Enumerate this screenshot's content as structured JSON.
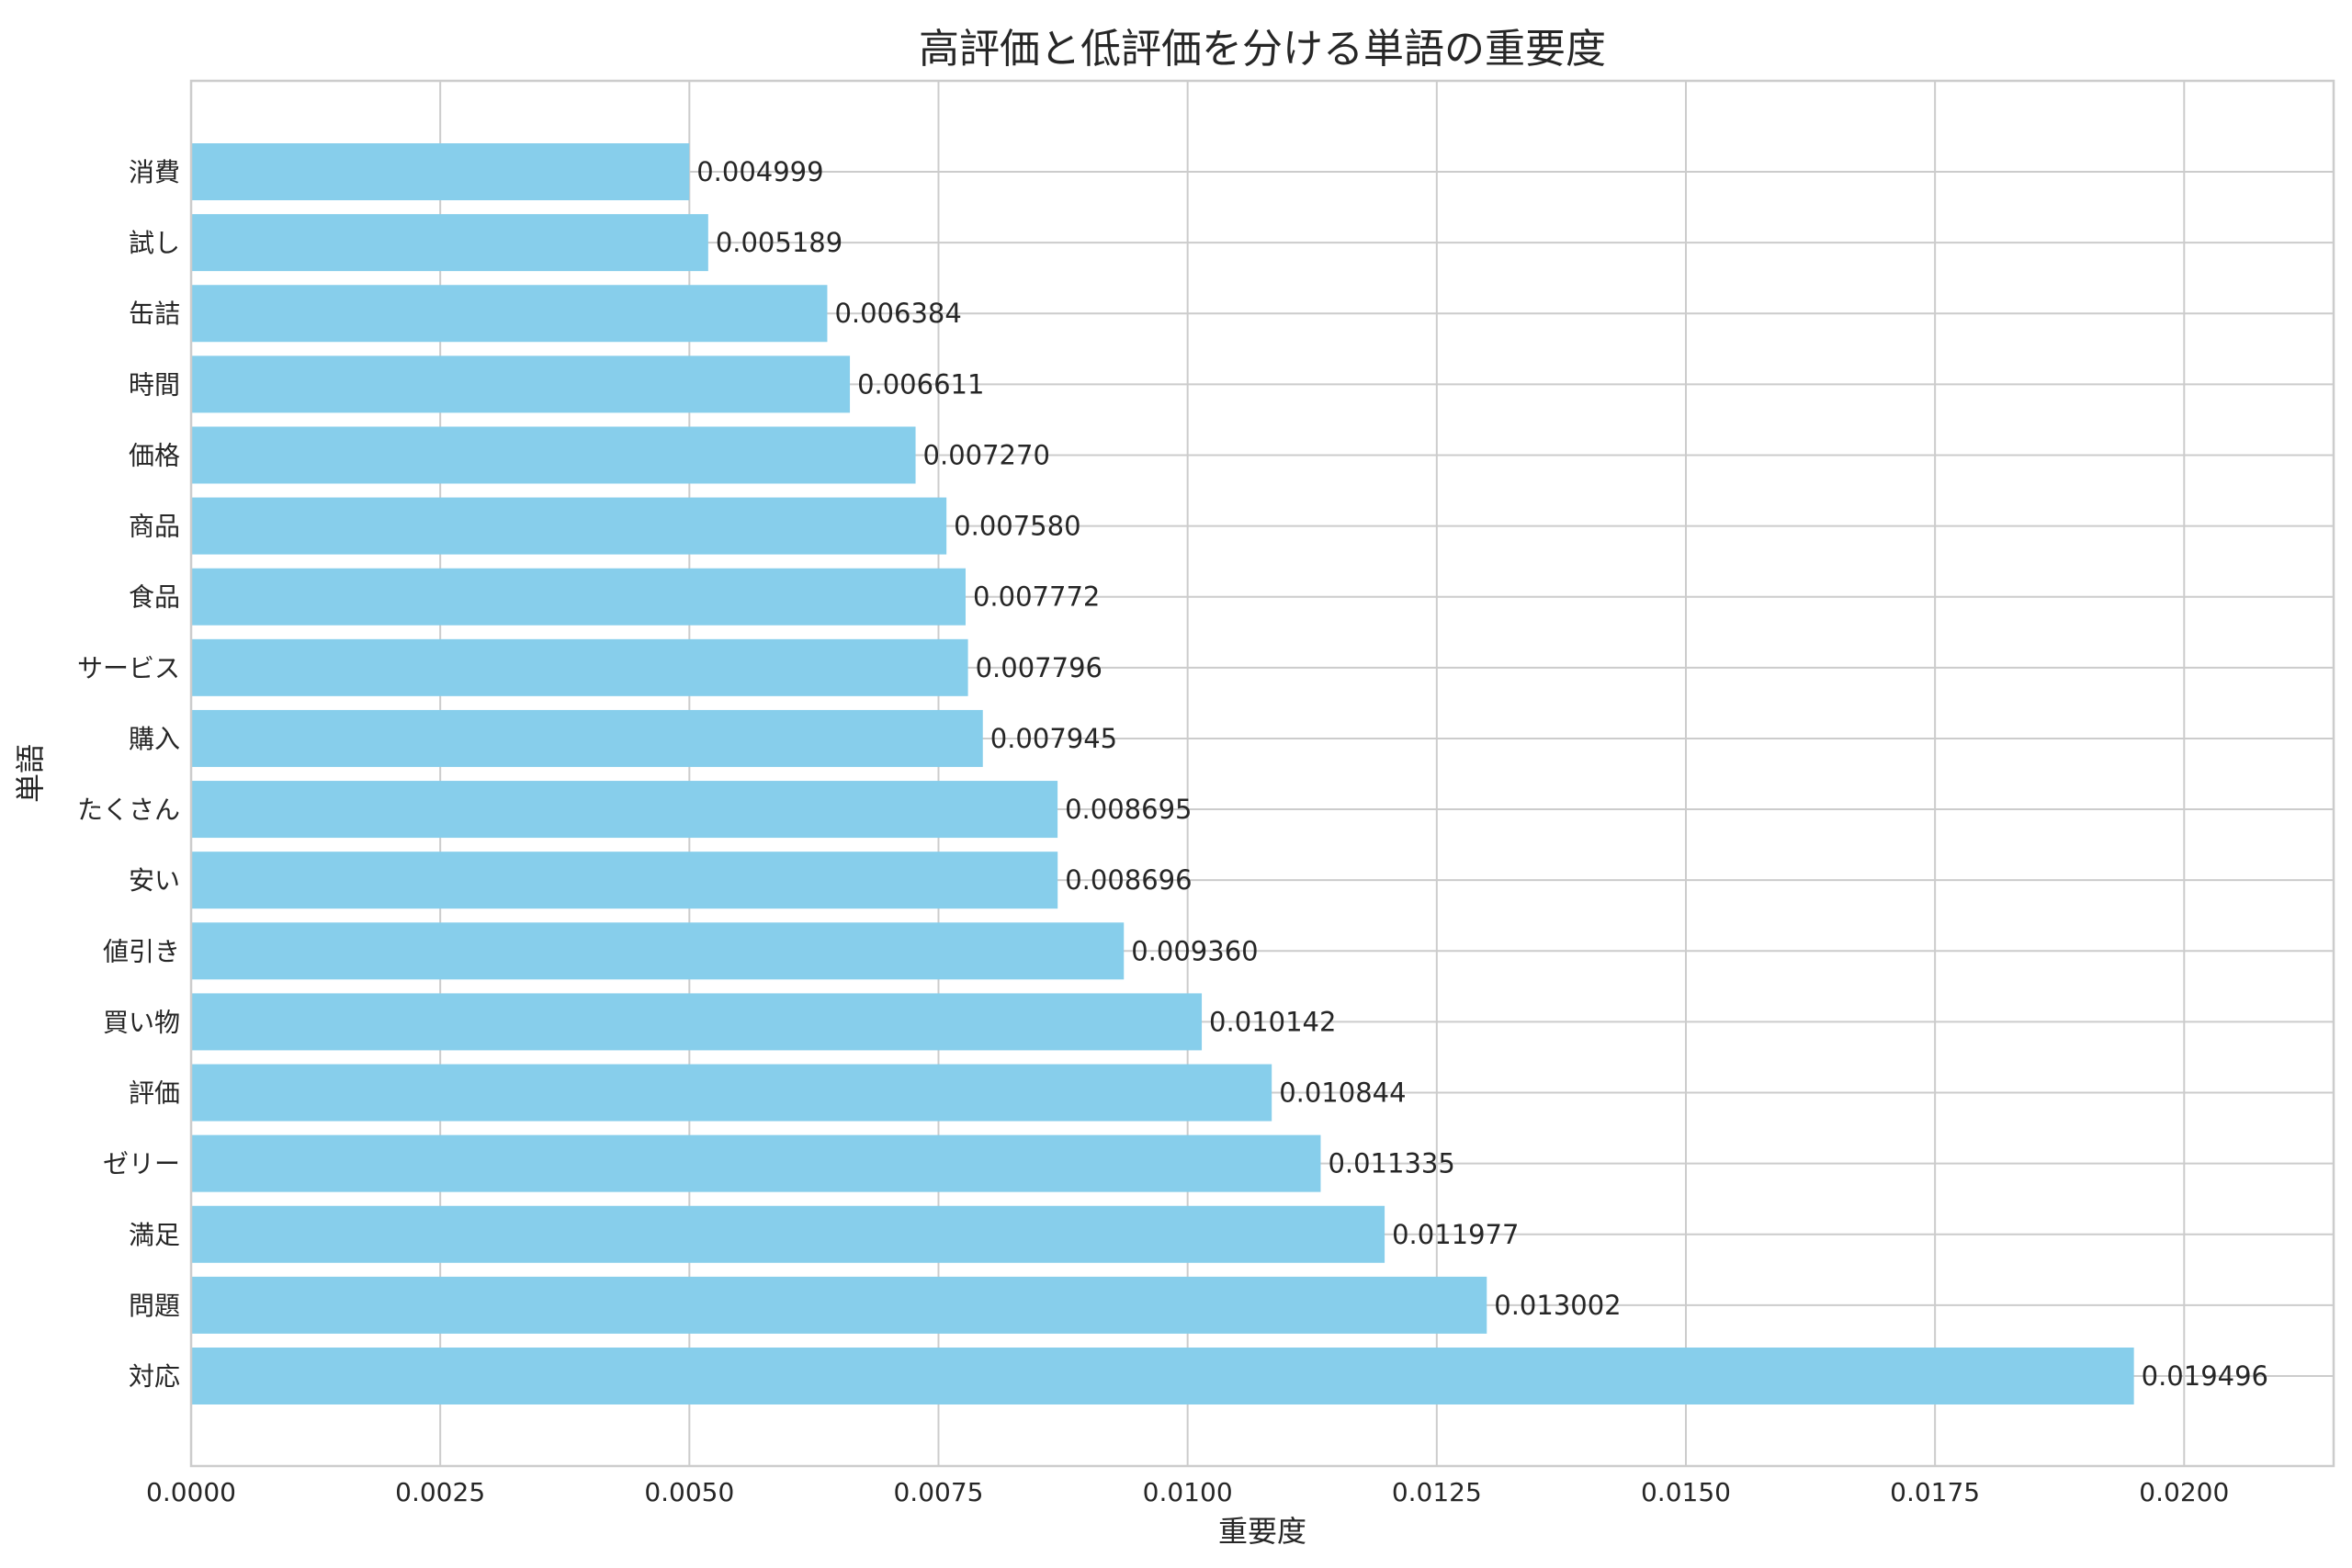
{
  "chart_data": {
    "type": "bar",
    "orientation": "horizontal",
    "title": "高評価と低評価を分ける単語の重要度",
    "xlabel": "重要度",
    "ylabel": "単語",
    "xlim": [
      0,
      0.0215
    ],
    "x_ticks": [
      0.0,
      0.0025,
      0.005,
      0.0075,
      0.01,
      0.0125,
      0.015,
      0.0175,
      0.02
    ],
    "x_tick_labels": [
      "0.0000",
      "0.0025",
      "0.0050",
      "0.0075",
      "0.0100",
      "0.0125",
      "0.0150",
      "0.0175",
      "0.0200"
    ],
    "grid": true,
    "bar_color": "#87CEEB",
    "categories": [
      "消費",
      "試し",
      "缶詰",
      "時間",
      "価格",
      "商品",
      "食品",
      "サービス",
      "購入",
      "たくさん",
      "安い",
      "値引き",
      "買い物",
      "評価",
      "ゼリー",
      "満足",
      "問題",
      "対応"
    ],
    "values": [
      0.004999,
      0.005189,
      0.006384,
      0.006611,
      0.00727,
      0.00758,
      0.007772,
      0.007796,
      0.007945,
      0.008695,
      0.008696,
      0.00936,
      0.010142,
      0.010844,
      0.011335,
      0.011977,
      0.013002,
      0.019496
    ],
    "value_labels": [
      "0.004999",
      "0.005189",
      "0.006384",
      "0.006611",
      "0.007270",
      "0.007580",
      "0.007772",
      "0.007796",
      "0.007945",
      "0.008695",
      "0.008696",
      "0.009360",
      "0.010142",
      "0.010844",
      "0.011335",
      "0.011977",
      "0.013002",
      "0.019496"
    ]
  }
}
